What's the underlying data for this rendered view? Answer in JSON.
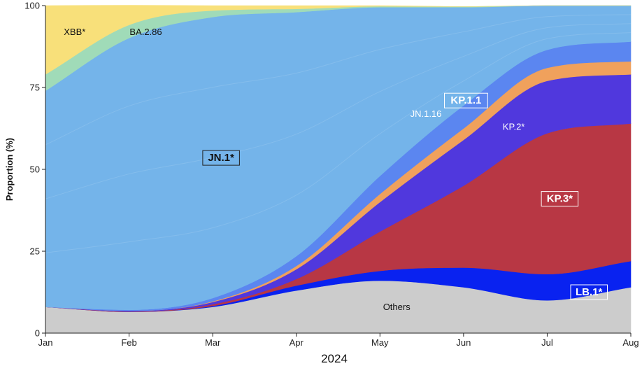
{
  "chart_data": {
    "type": "area",
    "title": "",
    "xlabel": "2024",
    "ylabel": "Proportion (%)",
    "ylim": [
      0,
      100
    ],
    "yticks": [
      0,
      25,
      50,
      75,
      100
    ],
    "categories": [
      "Jan",
      "Feb",
      "Mar",
      "Apr",
      "May",
      "Jun",
      "Jul",
      "Aug"
    ],
    "series": [
      {
        "name": "Others",
        "color": "#cccccc",
        "values": [
          8,
          6.5,
          8,
          13,
          16,
          14,
          10,
          14
        ]
      },
      {
        "name": "LB.1*",
        "color": "#0922f0",
        "values": [
          0,
          0,
          0.3,
          1.5,
          3,
          6,
          8,
          8
        ]
      },
      {
        "name": "KP.3*",
        "color": "#b83744",
        "values": [
          0,
          0.1,
          0.5,
          2,
          12,
          25,
          43,
          42
        ]
      },
      {
        "name": "KP.2*",
        "color": "#5038dd",
        "values": [
          0,
          0.2,
          0.7,
          3,
          9,
          14,
          16,
          15
        ]
      },
      {
        "name": "KP.1.1",
        "color": "#f0a15c",
        "values": [
          0,
          0,
          0.2,
          1,
          2.5,
          3.5,
          4,
          4
        ]
      },
      {
        "name": "JN.1.16",
        "color": "#5b86f0",
        "values": [
          0,
          0.3,
          1,
          3,
          5.5,
          7,
          5.5,
          6
        ]
      },
      {
        "name": "JN.1*",
        "color": "#74b4ea",
        "values": [
          66,
          83,
          85.8,
          74.5,
          51.5,
          30,
          13.5,
          11
        ]
      },
      {
        "name": "BA.2.86",
        "color": "#a0dbb8",
        "values": [
          5,
          4,
          2,
          1,
          0.3,
          0.2,
          0,
          0
        ]
      },
      {
        "name": "XBB*",
        "color": "#f8e07a",
        "values": [
          21,
          6,
          1.5,
          1,
          0.2,
          0,
          0,
          0
        ]
      }
    ],
    "labels": [
      {
        "series": "XBB*",
        "text": "XBB*",
        "style": "plain",
        "x": 0.35,
        "y": 92,
        "color": "#111111"
      },
      {
        "series": "BA.2.86",
        "text": "BA.2.86",
        "style": "plain",
        "x": 1.2,
        "y": 92,
        "color": "#111111"
      },
      {
        "series": "JN.1*",
        "text": "JN.1*",
        "style": "boxed",
        "x": 2.1,
        "y": 53.5,
        "color": "#111111"
      },
      {
        "series": "JN.1.16",
        "text": "JN.1.16",
        "style": "plain",
        "x": 4.55,
        "y": 67,
        "color": "#ffffff"
      },
      {
        "series": "KP.1.1",
        "text": "KP.1.1",
        "style": "boxed",
        "x": 5.03,
        "y": 71,
        "color": "#ffffff"
      },
      {
        "series": "KP.2*",
        "text": "KP.2*",
        "style": "plain",
        "x": 5.6,
        "y": 63,
        "color": "#ffffff"
      },
      {
        "series": "KP.3*",
        "text": "KP.3*",
        "style": "boxed",
        "x": 6.15,
        "y": 41,
        "color": "#ffffff"
      },
      {
        "series": "LB.1*",
        "text": "LB.1*",
        "style": "boxed",
        "x": 6.5,
        "y": 12.5,
        "color": "#ffffff"
      },
      {
        "series": "Others",
        "text": "Others",
        "style": "plain",
        "x": 4.2,
        "y": 8,
        "color": "#111111"
      }
    ]
  }
}
